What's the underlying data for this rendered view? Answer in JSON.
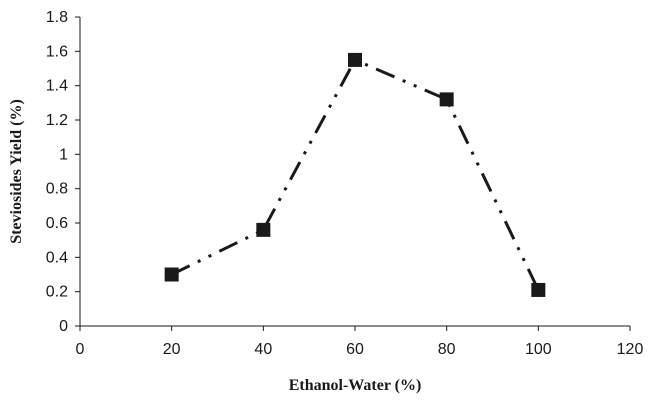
{
  "chart_data": {
    "type": "line",
    "title": "",
    "xlabel": "Ethanol-Water (%)",
    "ylabel": "Steviosides Yield (%)",
    "xlim": [
      0,
      120
    ],
    "ylim": [
      0,
      1.8
    ],
    "x_ticks": [
      "0",
      "20",
      "40",
      "60",
      "80",
      "100",
      "120"
    ],
    "y_ticks": [
      "0",
      "0.2",
      "0.4",
      "0.6",
      "0.8",
      "1",
      "1.2",
      "1.4",
      "1.6",
      "1.8"
    ],
    "grid": false,
    "legend": "none",
    "series": [
      {
        "marker": "square",
        "line_style": "dash-dot-dot",
        "color": "#1a1a1a",
        "x": [
          20,
          40,
          60,
          80,
          100
        ],
        "y": [
          0.3,
          0.56,
          1.55,
          1.32,
          0.21
        ]
      }
    ]
  }
}
